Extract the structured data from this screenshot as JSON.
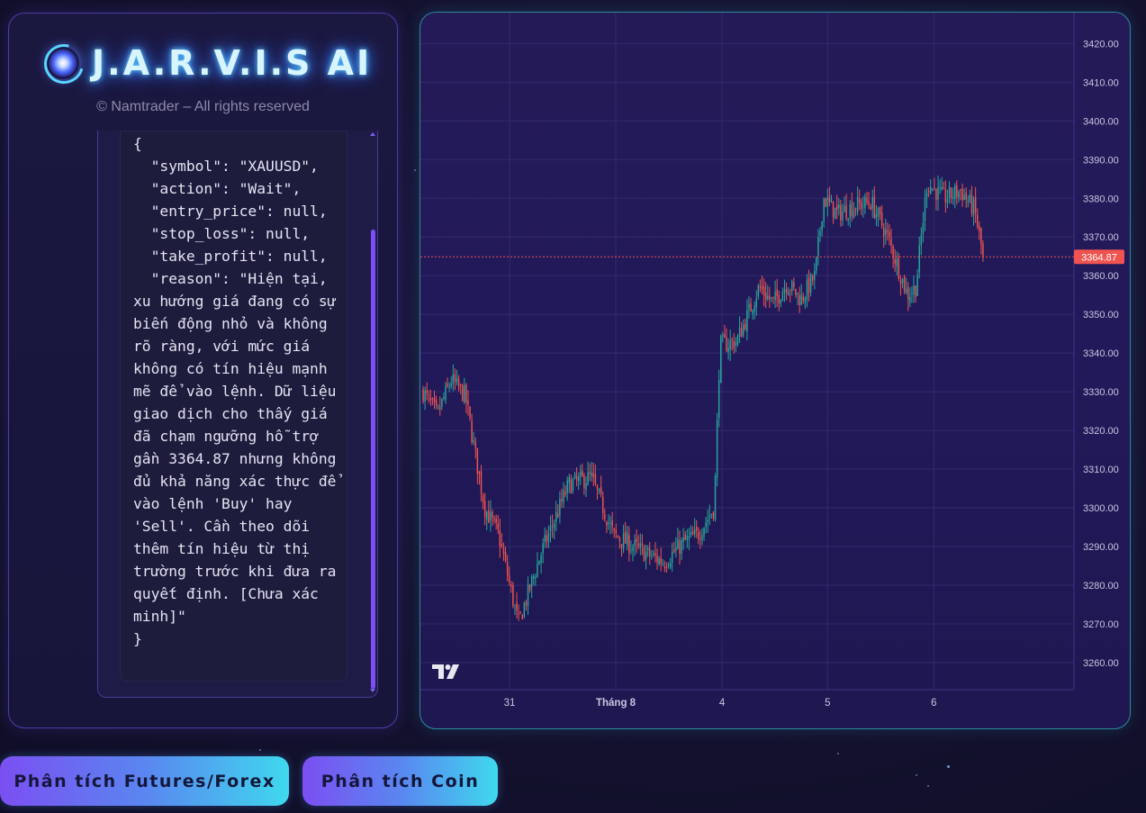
{
  "header": {
    "title": "J.A.R.V.I.S AI",
    "copyright": "© Namtrader – All rights reserved"
  },
  "analysis": {
    "output": "{\n  \"symbol\": \"XAUUSD\",\n  \"action\": \"Wait\",\n  \"entry_price\": null,\n  \"stop_loss\": null,\n  \"take_profit\": null,\n  \"reason\": \"Hiện tại, xu hướng giá đang có sự biến động nhỏ và không rõ ràng, với mức giá không có tín hiệu mạnh mẽ để vào lệnh. Dữ liệu giao dịch cho thấy giá đã chạm ngưỡng hỗ trợ gần 3364.87 nhưng không đủ khả năng xác thực để vào lệnh 'Buy' hay 'Sell'. Cần theo dõi thêm tín hiệu từ thị trường trước khi đưa ra quyết định. [Chưa xác minh]\"\n}"
  },
  "buttons": {
    "futures": "Phân tích Futures/Forex",
    "coin": "Phân tích Coin"
  },
  "colors": {
    "up": "#26a69a",
    "down": "#ef5350",
    "price_label_bg": "#f05350",
    "accent": "#7b4ff2"
  },
  "chart_data": {
    "type": "candlestick",
    "symbol": "XAUUSD",
    "last_price": 3364.87,
    "last_price_label": "3364.87",
    "ylim": [
      3253,
      3428
    ],
    "y_ticks": [
      "3260.00",
      "3270.00",
      "3280.00",
      "3290.00",
      "3300.00",
      "3310.00",
      "3320.00",
      "3330.00",
      "3340.00",
      "3350.00",
      "3360.00",
      "3370.00",
      "3380.00",
      "3390.00",
      "3400.00",
      "3410.00",
      "3420.00"
    ],
    "x_ticks": [
      {
        "label": "31",
        "bold": false
      },
      {
        "label": "Tháng 8",
        "bold": true
      },
      {
        "label": "4",
        "bold": false
      },
      {
        "label": "5",
        "bold": false
      },
      {
        "label": "6",
        "bold": false
      }
    ],
    "path": [
      [
        0,
        3330
      ],
      [
        0.025,
        3324
      ],
      [
        0.05,
        3333
      ],
      [
        0.075,
        3329
      ],
      [
        0.11,
        3300
      ],
      [
        0.135,
        3293
      ],
      [
        0.17,
        3270
      ],
      [
        0.21,
        3288
      ],
      [
        0.26,
        3306
      ],
      [
        0.3,
        3308
      ],
      [
        0.34,
        3293
      ],
      [
        0.4,
        3288
      ],
      [
        0.43,
        3286
      ],
      [
        0.465,
        3291
      ],
      [
        0.49,
        3293
      ],
      [
        0.52,
        3300
      ],
      [
        0.53,
        3342
      ],
      [
        0.56,
        3343
      ],
      [
        0.6,
        3357
      ],
      [
        0.625,
        3353
      ],
      [
        0.65,
        3358
      ],
      [
        0.675,
        3354
      ],
      [
        0.7,
        3360
      ],
      [
        0.715,
        3380
      ],
      [
        0.74,
        3376
      ],
      [
        0.77,
        3378
      ],
      [
        0.8,
        3379
      ],
      [
        0.83,
        3370
      ],
      [
        0.865,
        3355
      ],
      [
        0.88,
        3357
      ],
      [
        0.9,
        3384
      ],
      [
        0.93,
        3380
      ],
      [
        0.96,
        3382
      ],
      [
        0.985,
        3377
      ],
      [
        1,
        3365
      ]
    ]
  }
}
